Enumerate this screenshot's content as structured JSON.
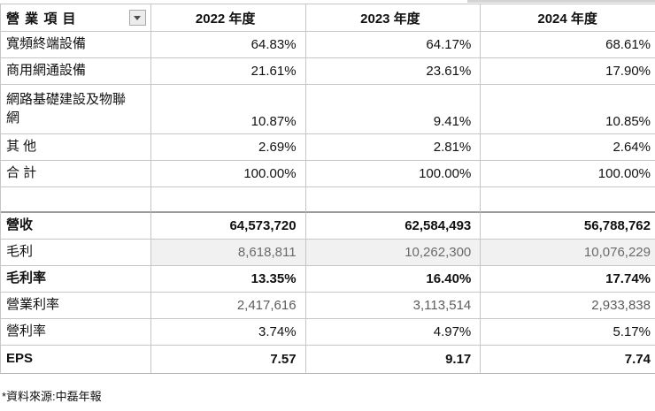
{
  "header": {
    "item_column_label": "營 業 項 目",
    "filter_icon": "dropdown-triangle-icon",
    "year_columns": [
      "2022 年度",
      "2023 年度",
      "2024 年度"
    ]
  },
  "table": {
    "rows": [
      {
        "label": "寬頻終端設備",
        "values": [
          "64.83%",
          "64.17%",
          "68.61%"
        ]
      },
      {
        "label": "商用網通設備",
        "values": [
          "21.61%",
          "23.61%",
          "17.90%"
        ]
      },
      {
        "label": "網路基礎建設及物聯\n網",
        "values": [
          "10.87%",
          "9.41%",
          "10.85%"
        ]
      },
      {
        "label": "其 他",
        "values": [
          "2.69%",
          "2.81%",
          "2.64%"
        ]
      },
      {
        "label": "合 計",
        "values": [
          "100.00%",
          "100.00%",
          "100.00%"
        ]
      },
      {
        "label": "",
        "values": [
          "",
          "",
          ""
        ]
      },
      {
        "label": "營收",
        "values": [
          "64,573,720",
          "62,584,493",
          "56,788,762"
        ]
      },
      {
        "label": "毛利",
        "values": [
          "8,618,811",
          "10,262,300",
          "10,076,229"
        ]
      },
      {
        "label": "毛利率",
        "values": [
          "13.35%",
          "16.40%",
          "17.74%"
        ]
      },
      {
        "label": "營業利率",
        "values": [
          "2,417,616",
          "3,113,514",
          "2,933,838"
        ]
      },
      {
        "label": "營利率",
        "values": [
          "3.74%",
          "4.97%",
          "5.17%"
        ]
      },
      {
        "label": "EPS",
        "values": [
          "7.57",
          "9.17",
          "7.74"
        ]
      }
    ]
  },
  "footer": {
    "source_note": "*資料來源:中磊年報"
  },
  "colors": {
    "grid_line": "#c6c6c6",
    "separator_line": "#9b9b9b",
    "muted_cell_bg": "#f1f1f1",
    "muted_text": "#6b6b6b",
    "filter_btn_bg": "#ececec"
  }
}
